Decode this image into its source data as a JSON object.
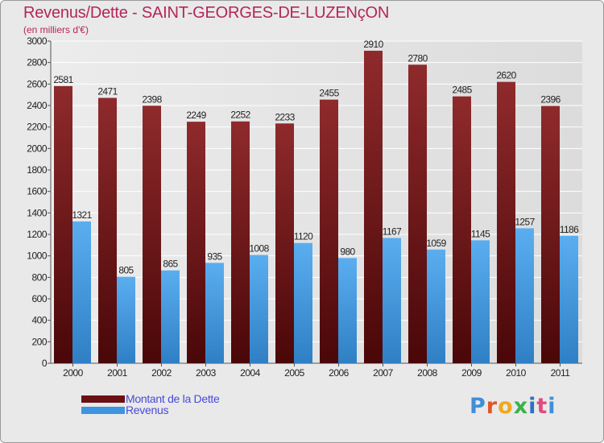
{
  "chart_data": {
    "type": "bar",
    "title": "Revenus/Dette - SAINT-GEORGES-DE-LUZENçON",
    "subtitle": "(en milliers d'€)",
    "categories": [
      "2000",
      "2001",
      "2002",
      "2003",
      "2004",
      "2005",
      "2006",
      "2007",
      "2008",
      "2009",
      "2010",
      "2011"
    ],
    "series": [
      {
        "name": "Montant de la Dette",
        "color": "#7a1a1e",
        "values": [
          2581,
          2471,
          2398,
          2249,
          2252,
          2233,
          2455,
          2910,
          2780,
          2485,
          2620,
          2396
        ]
      },
      {
        "name": "Revenus",
        "color": "#3d95e0",
        "values": [
          1321,
          805,
          865,
          935,
          1008,
          1120,
          980,
          1167,
          1059,
          1145,
          1257,
          1186
        ]
      }
    ],
    "ylim": [
      0,
      3000
    ],
    "yticks": [
      0,
      200,
      400,
      600,
      800,
      1000,
      1200,
      1400,
      1600,
      1800,
      2000,
      2200,
      2400,
      2600,
      2800,
      3000
    ],
    "grid": true,
    "legend_position": "bottom-left"
  },
  "logo_text": "Proxiti"
}
